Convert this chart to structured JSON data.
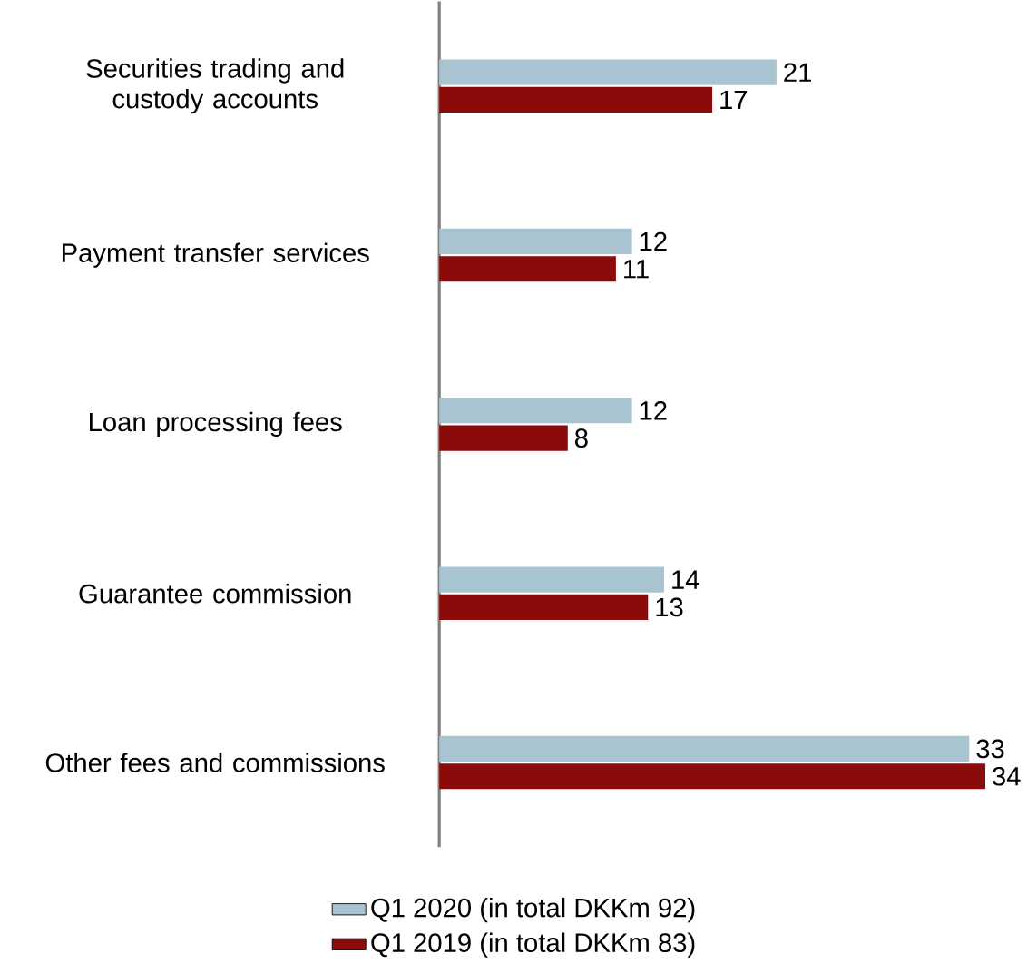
{
  "chart_data": {
    "type": "bar",
    "orientation": "horizontal",
    "categories": [
      "Securities trading and custody accounts",
      "Payment transfer services",
      "Loan processing fees",
      "Guarantee commission",
      "Other fees and commissions"
    ],
    "series": [
      {
        "name": "Q1 2020 (in total DKKm 92)",
        "color": "#a9c4d1",
        "values": [
          21,
          12,
          12,
          14,
          33
        ]
      },
      {
        "name": "Q1 2019 (in total DKKm 83)",
        "color": "#8b0a0a",
        "values": [
          17,
          11,
          8,
          13,
          34
        ]
      }
    ],
    "data_labels": true,
    "legend": "bottom"
  }
}
